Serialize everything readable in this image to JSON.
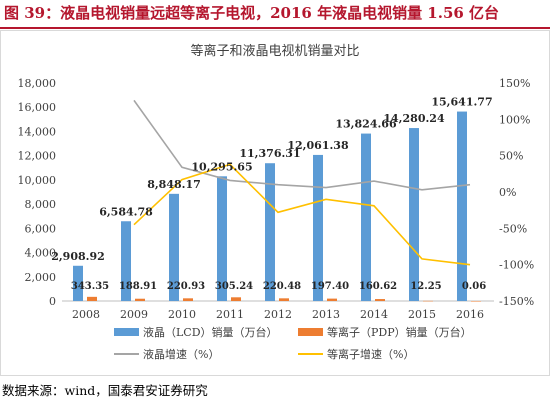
{
  "figure": {
    "title": "图 39：液晶电视销量远超等离子电视，2016 年液晶电视销量 1.56 亿台",
    "source": "数据来源：wind，国泰君安证券研究"
  },
  "colors": {
    "title_red": "#b5172e",
    "lcd_bar": "#5b9bd5",
    "pdp_bar": "#ed7d31",
    "lcd_growth_line": "#a5a5a5",
    "pdp_growth_line": "#ffc000"
  },
  "chart_data": {
    "type": "bar",
    "title": "等离子和液晶电视机销量对比",
    "categories": [
      "2008",
      "2009",
      "2010",
      "2011",
      "2012",
      "2013",
      "2014",
      "2015",
      "2016"
    ],
    "series": [
      {
        "name": "液晶（LCD）销量（万台）",
        "kind": "bar",
        "axis": "left",
        "values": [
          2908.92,
          6584.78,
          8848.17,
          10295.65,
          11376.31,
          12061.38,
          13824.66,
          14280.24,
          15641.77
        ],
        "labels": [
          "2,908.92",
          "6,584.78",
          "8,848.17",
          "10,295.65",
          "11,376.31",
          "12,061.38",
          "13,824.66",
          "14,280.24",
          "15,641.77"
        ]
      },
      {
        "name": "等离子（PDP）销量（万台）",
        "kind": "bar",
        "axis": "left",
        "values": [
          343.35,
          188.91,
          220.93,
          305.24,
          220.48,
          197.4,
          160.62,
          12.25,
          0.06
        ],
        "labels": [
          "343.35",
          "188.91",
          "220.93",
          "305.24",
          "220.48",
          "197.40",
          "160.62",
          "12.25",
          "0.06"
        ]
      },
      {
        "name": "液晶增速（%）",
        "kind": "line",
        "axis": "right",
        "values": [
          null,
          126,
          34,
          16,
          10,
          6,
          15,
          3,
          10
        ]
      },
      {
        "name": "等离子增速（%）",
        "kind": "line",
        "axis": "right",
        "values": [
          null,
          -45,
          17,
          38,
          -28,
          -10,
          -19,
          -92,
          -100
        ]
      }
    ],
    "y_left": {
      "min": 0,
      "max": 18000,
      "step": 2000,
      "ticks": [
        "0",
        "2,000",
        "4,000",
        "6,000",
        "8,000",
        "10,000",
        "12,000",
        "14,000",
        "16,000",
        "18,000"
      ]
    },
    "y_right": {
      "min": -150,
      "max": 150,
      "step": 50,
      "ticks": [
        "-150%",
        "-100%",
        "-50%",
        "0%",
        "50%",
        "100%",
        "150%"
      ]
    },
    "grid": false,
    "legend_position": "bottom"
  }
}
